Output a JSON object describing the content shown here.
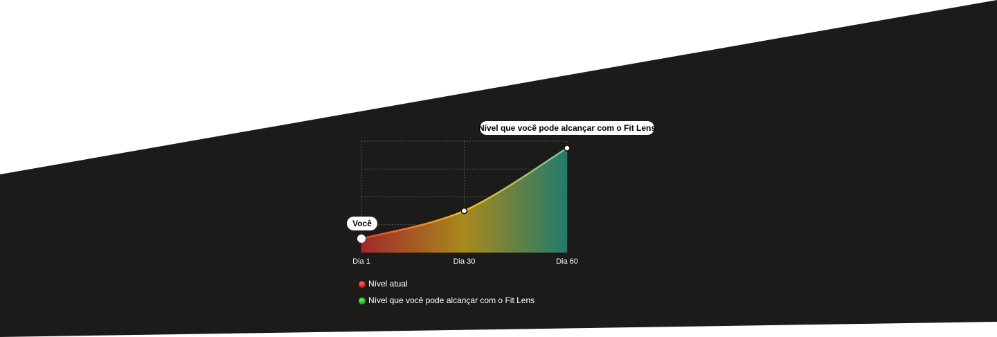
{
  "chart_data": {
    "type": "line",
    "categories": [
      "Dia 1",
      "Dia 30",
      "Dia 60"
    ],
    "values": [
      0.5,
      1.5,
      3.75
    ],
    "ylim": [
      0,
      4
    ],
    "grid": true,
    "annotations": [
      "Você",
      "Nível que você pode alcançar com o Fit Lens"
    ],
    "legend": [
      {
        "name": "Nível atual",
        "color": "#e0201c"
      },
      {
        "name": "Nível que você pode alcançar com o Fit Lens",
        "color": "#22c01e"
      }
    ]
  }
}
